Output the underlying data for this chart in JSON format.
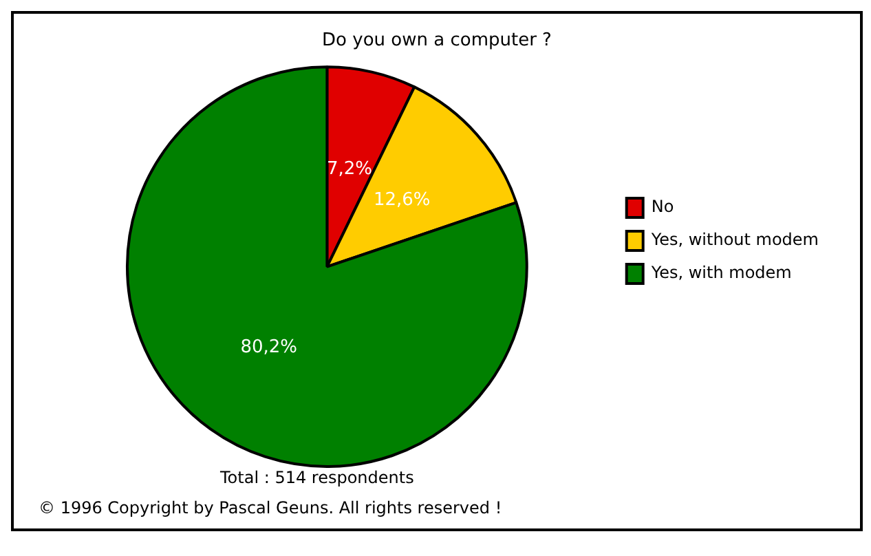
{
  "chart_data": {
    "type": "pie",
    "title": "Do you own a computer ?",
    "categories": [
      "No",
      "Yes, without modem",
      "Yes, with modem"
    ],
    "values": [
      7.2,
      12.6,
      80.2
    ],
    "colors": [
      "#e00000",
      "#ffcc00",
      "#008000"
    ],
    "value_labels": [
      "7,2%",
      "12,6%",
      "80,2%"
    ],
    "legend": "right",
    "annotations": [
      "Total :  514 respondents",
      "© 1996   Copyright by Pascal Geuns.  All rights reserved !"
    ]
  }
}
